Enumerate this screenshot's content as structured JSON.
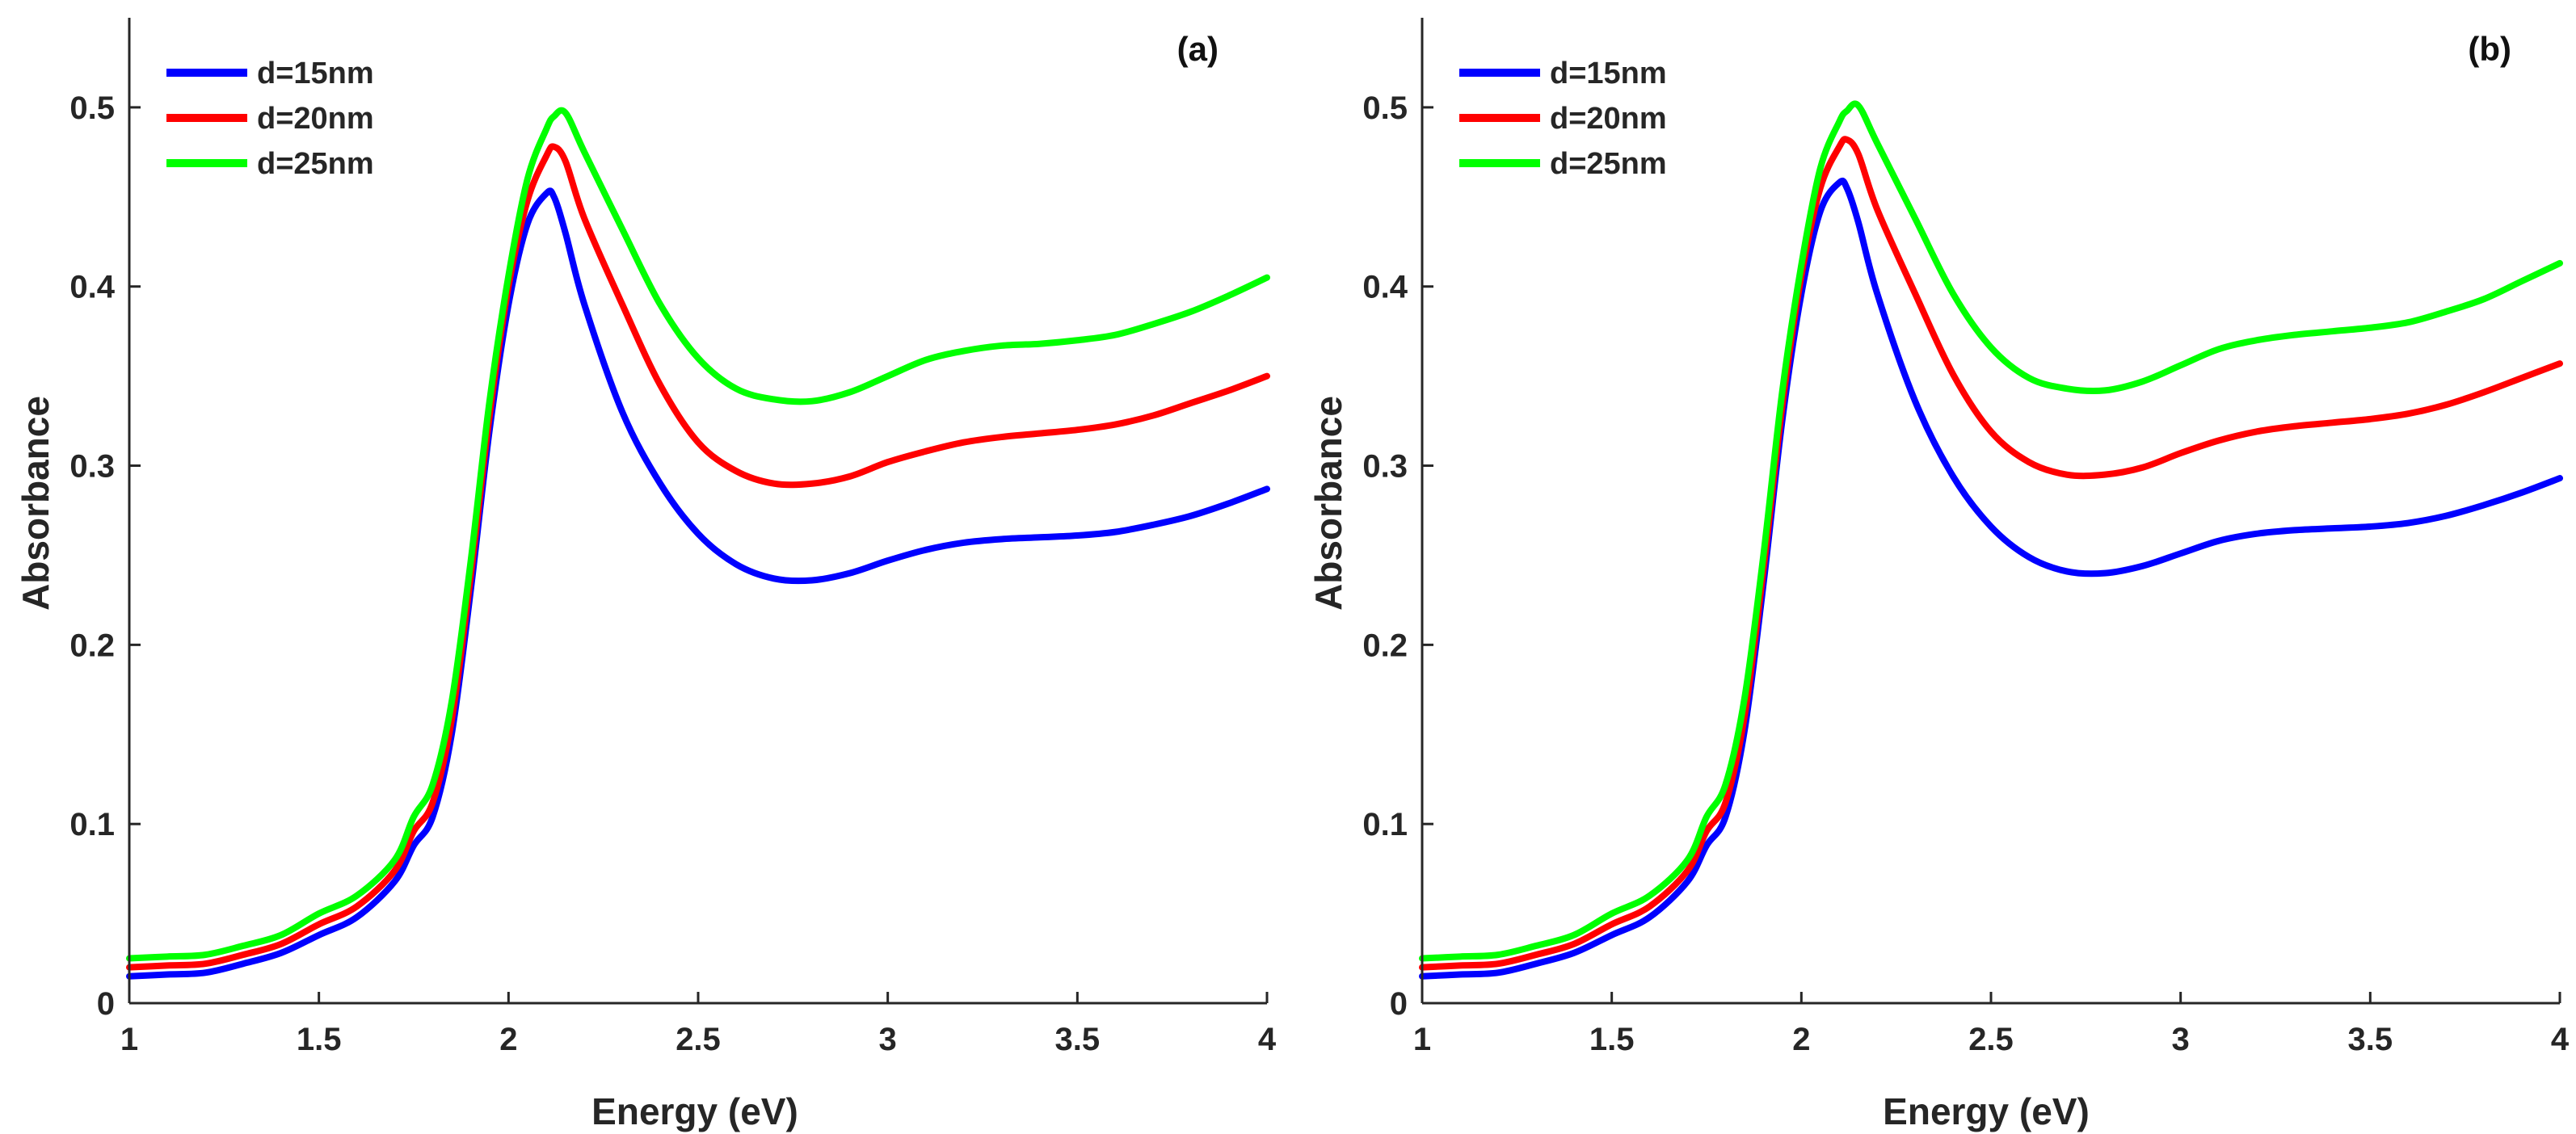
{
  "chart_data": [
    {
      "type": "line",
      "panel_label": "(a)",
      "xlabel": "Energy (eV)",
      "ylabel": "Absorbance",
      "xlim": [
        1,
        4
      ],
      "ylim": [
        0,
        0.55
      ],
      "xticks": [
        1,
        1.5,
        2,
        2.5,
        3,
        3.5,
        4
      ],
      "xtick_labels": [
        "1",
        "1.5",
        "2",
        "2.5",
        "3",
        "3.5",
        "4"
      ],
      "yticks": [
        0,
        0.1,
        0.2,
        0.3,
        0.4,
        0.5
      ],
      "ytick_labels": [
        "0",
        "0.1",
        "0.2",
        "0.3",
        "0.4",
        "0.5"
      ],
      "grid": false,
      "legend_position": "top-left",
      "x": [
        1.0,
        1.1,
        1.2,
        1.3,
        1.4,
        1.5,
        1.6,
        1.7,
        1.75,
        1.8,
        1.85,
        1.9,
        1.95,
        2.0,
        2.05,
        2.1,
        2.12,
        2.15,
        2.2,
        2.3,
        2.4,
        2.5,
        2.6,
        2.7,
        2.8,
        2.9,
        3.0,
        3.1,
        3.2,
        3.3,
        3.4,
        3.5,
        3.6,
        3.7,
        3.8,
        3.9,
        4.0
      ],
      "series": [
        {
          "name": "d=15nm",
          "color": "#0000ff",
          "values": [
            0.015,
            0.016,
            0.017,
            0.022,
            0.028,
            0.038,
            0.048,
            0.068,
            0.088,
            0.104,
            0.15,
            0.23,
            0.32,
            0.39,
            0.435,
            0.452,
            0.45,
            0.43,
            0.39,
            0.33,
            0.29,
            0.262,
            0.245,
            0.237,
            0.236,
            0.24,
            0.247,
            0.253,
            0.257,
            0.259,
            0.26,
            0.261,
            0.263,
            0.267,
            0.272,
            0.279,
            0.287
          ]
        },
        {
          "name": "d=20nm",
          "color": "#ff0000",
          "values": [
            0.02,
            0.021,
            0.022,
            0.027,
            0.033,
            0.044,
            0.054,
            0.074,
            0.096,
            0.112,
            0.158,
            0.238,
            0.328,
            0.4,
            0.448,
            0.473,
            0.478,
            0.47,
            0.438,
            0.39,
            0.345,
            0.313,
            0.297,
            0.29,
            0.29,
            0.294,
            0.302,
            0.308,
            0.313,
            0.316,
            0.318,
            0.32,
            0.323,
            0.328,
            0.335,
            0.342,
            0.35
          ]
        },
        {
          "name": "d=25nm",
          "color": "#00ff00",
          "values": [
            0.025,
            0.026,
            0.027,
            0.032,
            0.038,
            0.05,
            0.06,
            0.08,
            0.104,
            0.122,
            0.168,
            0.246,
            0.336,
            0.406,
            0.46,
            0.488,
            0.495,
            0.497,
            0.475,
            0.432,
            0.39,
            0.36,
            0.343,
            0.337,
            0.336,
            0.341,
            0.35,
            0.359,
            0.364,
            0.367,
            0.368,
            0.37,
            0.373,
            0.379,
            0.386,
            0.395,
            0.405
          ]
        }
      ]
    },
    {
      "type": "line",
      "panel_label": "(b)",
      "xlabel": "Energy (eV)",
      "ylabel": "Absorbance",
      "xlim": [
        1,
        4
      ],
      "ylim": [
        0,
        0.55
      ],
      "xticks": [
        1,
        1.5,
        2,
        2.5,
        3,
        3.5,
        4
      ],
      "xtick_labels": [
        "1",
        "1.5",
        "2",
        "2.5",
        "3",
        "3.5",
        "4"
      ],
      "yticks": [
        0,
        0.1,
        0.2,
        0.3,
        0.4,
        0.5
      ],
      "ytick_labels": [
        "0",
        "0.1",
        "0.2",
        "0.3",
        "0.4",
        "0.5"
      ],
      "grid": false,
      "legend_position": "top-left",
      "x": [
        1.0,
        1.1,
        1.2,
        1.3,
        1.4,
        1.5,
        1.6,
        1.7,
        1.75,
        1.8,
        1.85,
        1.9,
        1.95,
        2.0,
        2.05,
        2.1,
        2.12,
        2.15,
        2.2,
        2.3,
        2.4,
        2.5,
        2.6,
        2.7,
        2.8,
        2.9,
        3.0,
        3.1,
        3.2,
        3.3,
        3.4,
        3.5,
        3.6,
        3.7,
        3.8,
        3.9,
        4.0
      ],
      "series": [
        {
          "name": "d=15nm",
          "color": "#0000ff",
          "values": [
            0.015,
            0.016,
            0.017,
            0.022,
            0.028,
            0.038,
            0.048,
            0.068,
            0.088,
            0.104,
            0.152,
            0.234,
            0.326,
            0.396,
            0.442,
            0.458,
            0.455,
            0.436,
            0.396,
            0.336,
            0.294,
            0.266,
            0.249,
            0.241,
            0.24,
            0.244,
            0.251,
            0.258,
            0.262,
            0.264,
            0.265,
            0.266,
            0.268,
            0.272,
            0.278,
            0.285,
            0.293
          ]
        },
        {
          "name": "d=20nm",
          "color": "#ff0000",
          "values": [
            0.02,
            0.021,
            0.022,
            0.027,
            0.033,
            0.044,
            0.054,
            0.074,
            0.096,
            0.112,
            0.16,
            0.242,
            0.334,
            0.406,
            0.455,
            0.478,
            0.482,
            0.474,
            0.443,
            0.396,
            0.351,
            0.319,
            0.302,
            0.295,
            0.295,
            0.299,
            0.307,
            0.314,
            0.319,
            0.322,
            0.324,
            0.326,
            0.329,
            0.334,
            0.341,
            0.349,
            0.357
          ]
        },
        {
          "name": "d=25nm",
          "color": "#00ff00",
          "values": [
            0.025,
            0.026,
            0.027,
            0.032,
            0.038,
            0.05,
            0.06,
            0.08,
            0.104,
            0.122,
            0.17,
            0.25,
            0.342,
            0.412,
            0.466,
            0.492,
            0.498,
            0.501,
            0.48,
            0.438,
            0.396,
            0.366,
            0.349,
            0.343,
            0.342,
            0.347,
            0.356,
            0.365,
            0.37,
            0.373,
            0.375,
            0.377,
            0.38,
            0.386,
            0.393,
            0.403,
            0.413
          ]
        }
      ]
    }
  ]
}
